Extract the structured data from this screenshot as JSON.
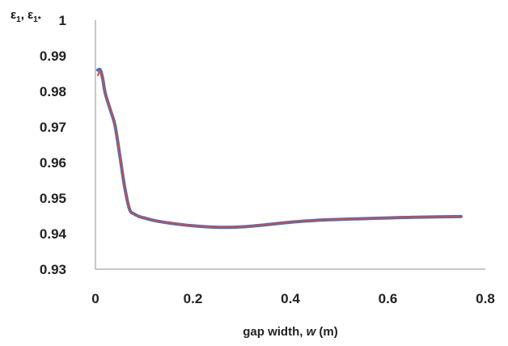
{
  "chart_data": {
    "type": "line",
    "title": "",
    "ylabel": {
      "main": "ε",
      "sub1": "1",
      "sep": ", ",
      "main2": "ε",
      "sub2": "1*"
    },
    "xlabel": {
      "prefix": "gap width, ",
      "var": "w",
      "suffix": " (m)"
    },
    "xlim": [
      0,
      0.8
    ],
    "ylim": [
      0.93,
      1.0
    ],
    "xticks": [
      "0",
      "0.2",
      "0.4",
      "0.6",
      "0.8"
    ],
    "yticks": [
      "0.93",
      "0.94",
      "0.95",
      "0.96",
      "0.97",
      "0.98",
      "0.99",
      "1"
    ],
    "grid": false,
    "legend": "none",
    "series": [
      {
        "color": "#4472c4",
        "x": [
          0.005,
          0.01,
          0.015,
          0.02,
          0.03,
          0.04,
          0.05,
          0.06,
          0.07,
          0.08,
          0.09,
          0.1,
          0.12,
          0.15,
          0.2,
          0.25,
          0.3,
          0.35,
          0.4,
          0.45,
          0.5,
          0.55,
          0.6,
          0.65,
          0.7,
          0.75
        ],
        "y": [
          0.986,
          0.986,
          0.9835,
          0.9795,
          0.975,
          0.9705,
          0.962,
          0.953,
          0.9468,
          0.9455,
          0.9448,
          0.9444,
          0.9437,
          0.943,
          0.9422,
          0.9418,
          0.9419,
          0.9425,
          0.9432,
          0.9437,
          0.944,
          0.9442,
          0.9444,
          0.9446,
          0.9447,
          0.9448
        ]
      },
      {
        "color": "#c0504d",
        "x": [
          0.005,
          0.01,
          0.015,
          0.02,
          0.03,
          0.04,
          0.05,
          0.06,
          0.07,
          0.08,
          0.09,
          0.1,
          0.12,
          0.15,
          0.2,
          0.25,
          0.3,
          0.35,
          0.4,
          0.45,
          0.5,
          0.55,
          0.6,
          0.65,
          0.7,
          0.75
        ],
        "y": [
          0.9845,
          0.9858,
          0.9833,
          0.9795,
          0.975,
          0.9705,
          0.962,
          0.953,
          0.9468,
          0.9455,
          0.9448,
          0.9444,
          0.9437,
          0.943,
          0.9422,
          0.9418,
          0.9419,
          0.9425,
          0.9432,
          0.9437,
          0.944,
          0.9442,
          0.9444,
          0.9446,
          0.9447,
          0.9448
        ]
      }
    ]
  }
}
